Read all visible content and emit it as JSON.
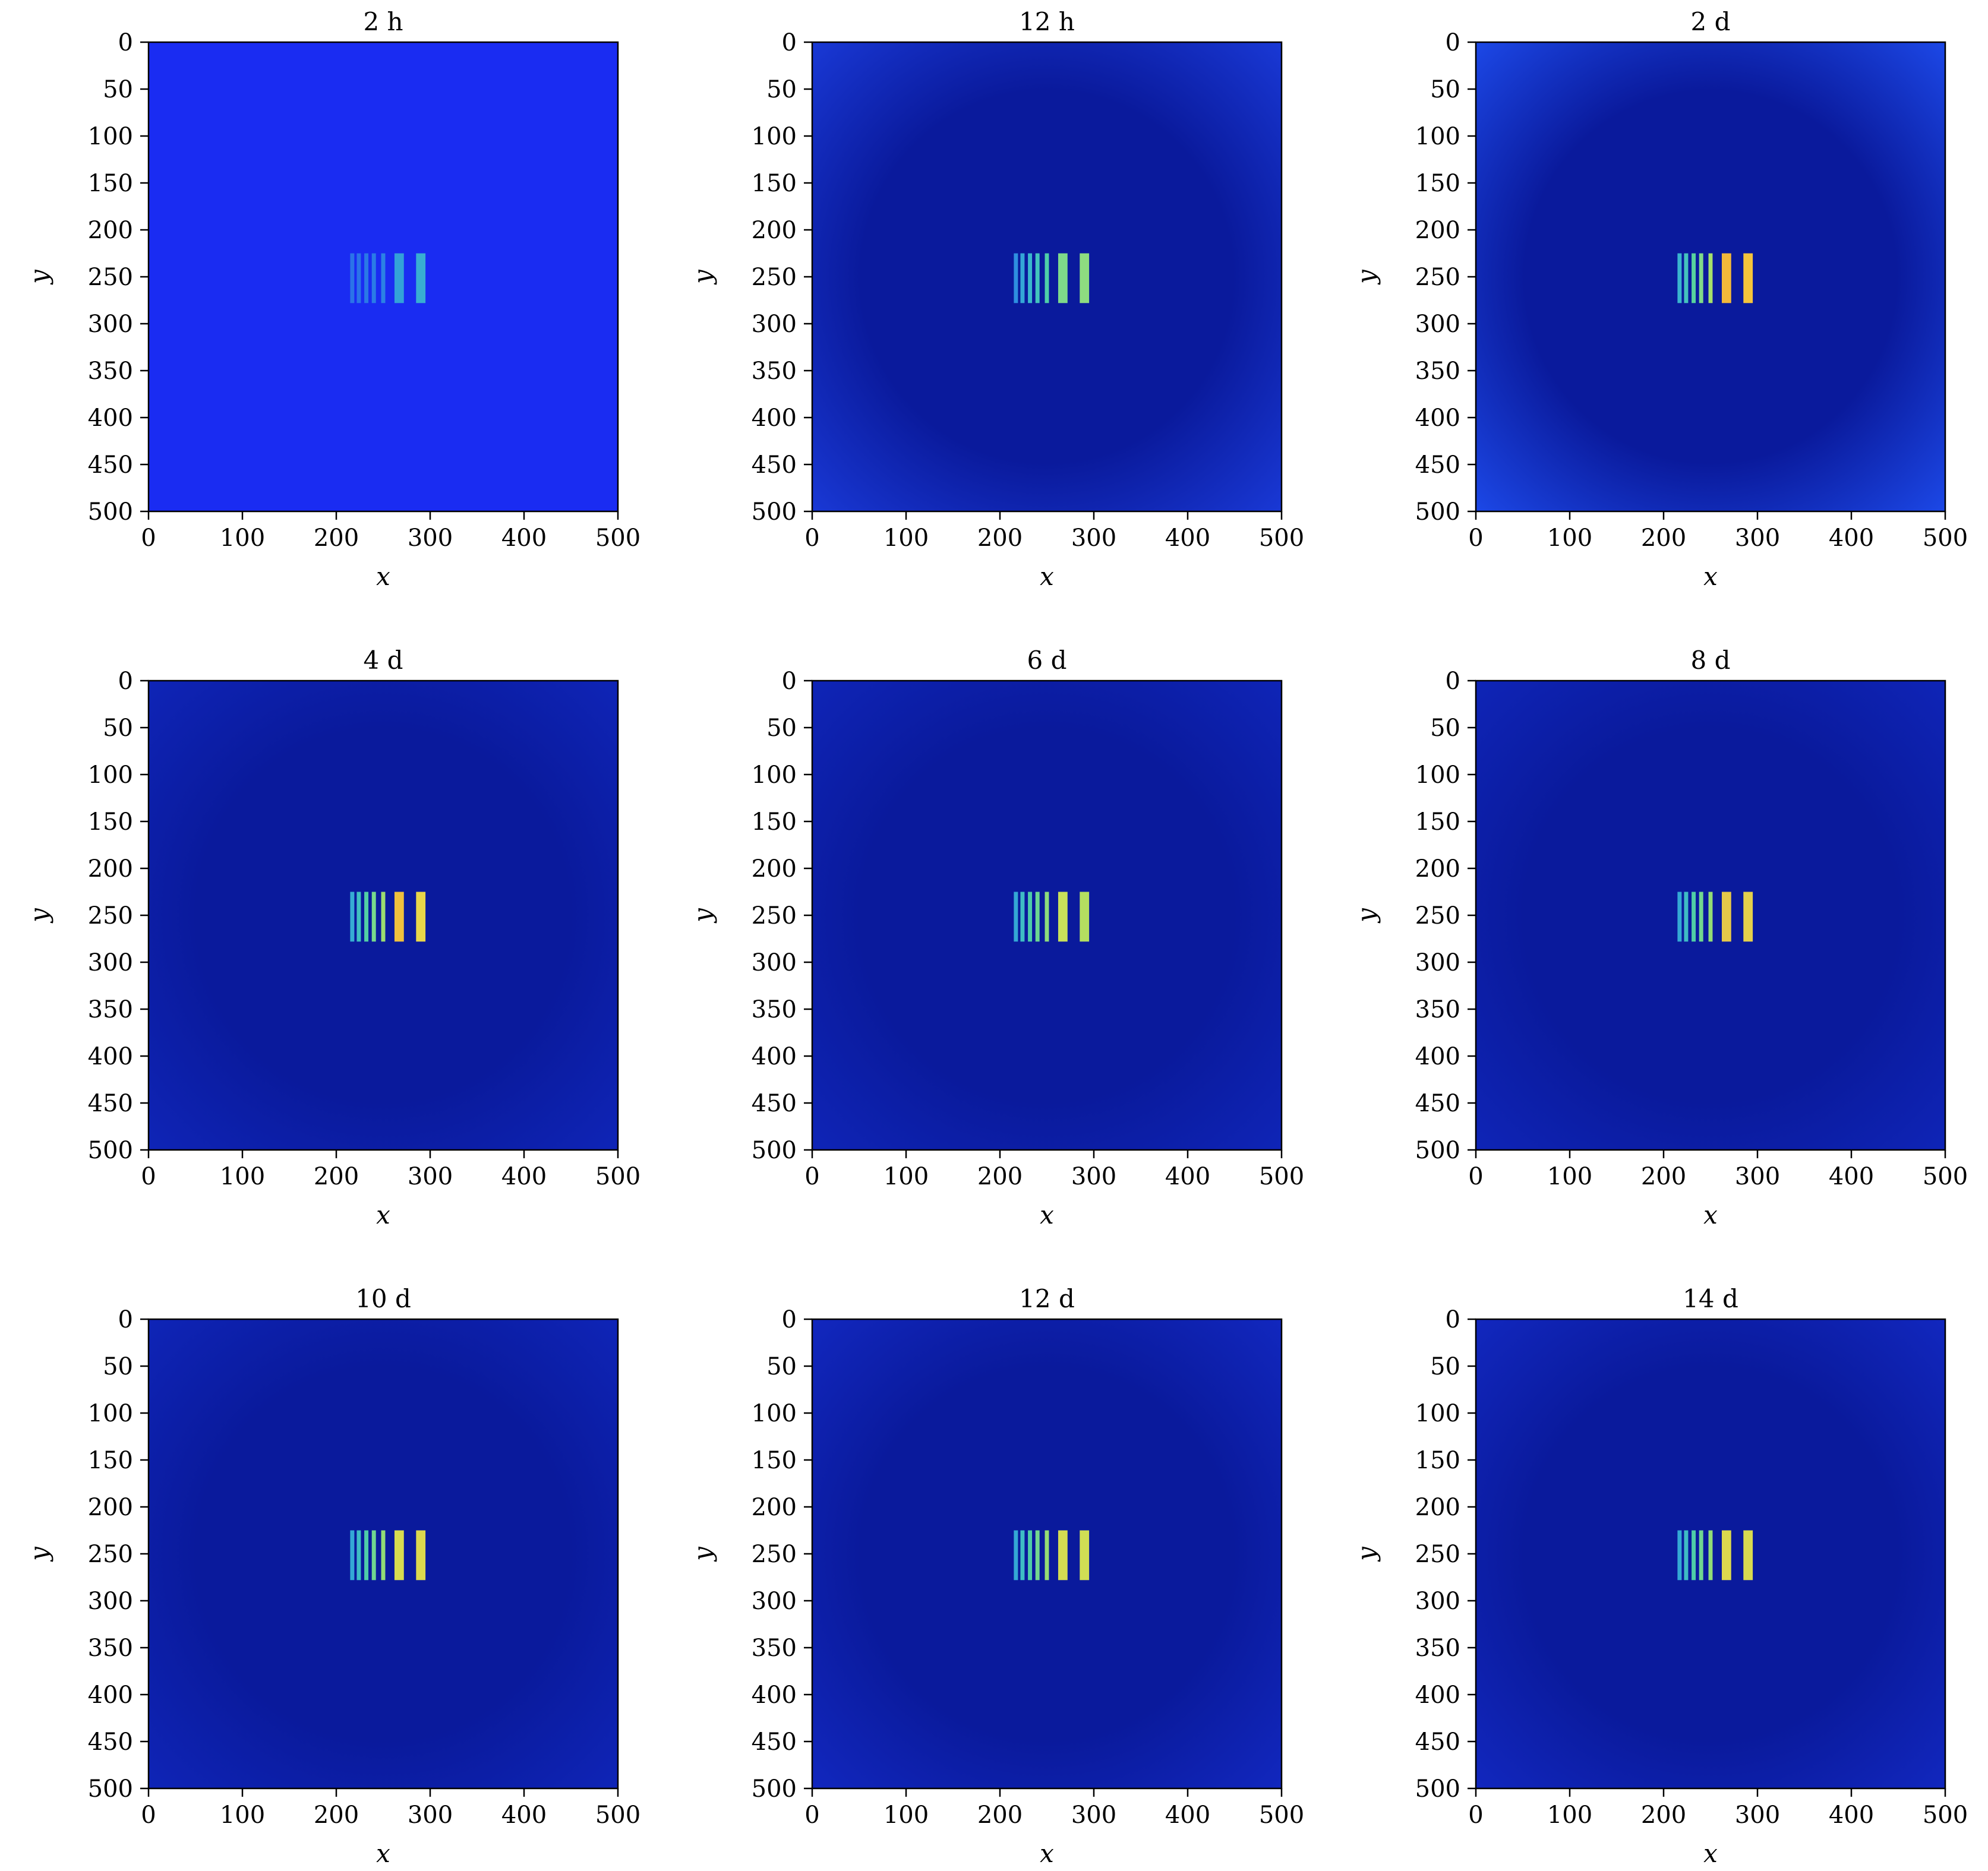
{
  "chart_data": [
    {
      "type": "heatmap",
      "title": "2 h",
      "xlabel": "x",
      "ylabel": "y",
      "xlim": [
        0,
        500
      ],
      "ylim": [
        500,
        0
      ],
      "xticks": [
        0,
        100,
        200,
        300,
        400,
        500
      ],
      "yticks": [
        0,
        50,
        100,
        150,
        200,
        250,
        300,
        350,
        400,
        450,
        500
      ],
      "background": "#1a2cf2",
      "edge_color": "#1a2cf2",
      "target_region": {
        "x": [
          213,
          295
        ],
        "y": [
          225,
          278
        ]
      },
      "bars": [
        {
          "x": 217,
          "color": "#2b74e8"
        },
        {
          "x": 224,
          "color": "#2b74e8"
        },
        {
          "x": 232,
          "color": "#2a78e6"
        },
        {
          "x": 240,
          "color": "#2a7ce6"
        },
        {
          "x": 250,
          "color": "#2b82e4"
        },
        {
          "x": 267,
          "color": "#33a2d8"
        },
        {
          "x": 290,
          "color": "#38aed2"
        }
      ]
    },
    {
      "type": "heatmap",
      "title": "12 h",
      "xlabel": "x",
      "ylabel": "y",
      "xlim": [
        0,
        500
      ],
      "ylim": [
        500,
        0
      ],
      "xticks": [
        0,
        100,
        200,
        300,
        400,
        500
      ],
      "yticks": [
        0,
        50,
        100,
        150,
        200,
        250,
        300,
        350,
        400,
        450,
        500
      ],
      "background": "#0a1a9c",
      "edge_color": "#1a3ad8",
      "target_region": {
        "x": [
          213,
          295
        ],
        "y": [
          225,
          278
        ]
      },
      "bars": [
        {
          "x": 217,
          "color": "#2e8fe0"
        },
        {
          "x": 224,
          "color": "#34a6d6"
        },
        {
          "x": 232,
          "color": "#3bb8cc"
        },
        {
          "x": 240,
          "color": "#43c4bc"
        },
        {
          "x": 250,
          "color": "#4fcfa8"
        },
        {
          "x": 267,
          "color": "#7ed98a"
        },
        {
          "x": 290,
          "color": "#8edc80"
        }
      ]
    },
    {
      "type": "heatmap",
      "title": "2 d",
      "xlabel": "x",
      "ylabel": "y",
      "xlim": [
        0,
        500
      ],
      "ylim": [
        500,
        0
      ],
      "xticks": [
        0,
        100,
        200,
        300,
        400,
        500
      ],
      "yticks": [
        0,
        50,
        100,
        150,
        200,
        250,
        300,
        350,
        400,
        450,
        500
      ],
      "background": "#0a1a9c",
      "edge_color": "#1d4aea",
      "target_region": {
        "x": [
          213,
          295
        ],
        "y": [
          225,
          278
        ]
      },
      "bars": [
        {
          "x": 217,
          "color": "#3ab4cf"
        },
        {
          "x": 224,
          "color": "#44c4bd"
        },
        {
          "x": 232,
          "color": "#58d29e"
        },
        {
          "x": 240,
          "color": "#80da88"
        },
        {
          "x": 250,
          "color": "#a6e06a"
        },
        {
          "x": 267,
          "color": "#f2b83a"
        },
        {
          "x": 290,
          "color": "#f4c43c"
        }
      ]
    },
    {
      "type": "heatmap",
      "title": "4 d",
      "xlabel": "x",
      "ylabel": "y",
      "xlim": [
        0,
        500
      ],
      "ylim": [
        500,
        0
      ],
      "xticks": [
        0,
        100,
        200,
        300,
        400,
        500
      ],
      "yticks": [
        0,
        50,
        100,
        150,
        200,
        250,
        300,
        350,
        400,
        450,
        500
      ],
      "background": "#0a1a9c",
      "edge_color": "#0f25b8",
      "target_region": {
        "x": [
          213,
          295
        ],
        "y": [
          225,
          278
        ]
      },
      "bars": [
        {
          "x": 217,
          "color": "#36acd3"
        },
        {
          "x": 224,
          "color": "#40c0c0"
        },
        {
          "x": 232,
          "color": "#52cfa4"
        },
        {
          "x": 240,
          "color": "#78d98c"
        },
        {
          "x": 250,
          "color": "#9cdd70"
        },
        {
          "x": 267,
          "color": "#efc03e"
        },
        {
          "x": 290,
          "color": "#e8d64a"
        }
      ]
    },
    {
      "type": "heatmap",
      "title": "6 d",
      "xlabel": "x",
      "ylabel": "y",
      "xlim": [
        0,
        500
      ],
      "ylim": [
        500,
        0
      ],
      "xticks": [
        0,
        100,
        200,
        300,
        400,
        500
      ],
      "yticks": [
        0,
        50,
        100,
        150,
        200,
        250,
        300,
        350,
        400,
        450,
        500
      ],
      "background": "#0a1a9c",
      "edge_color": "#0f25b8",
      "target_region": {
        "x": [
          213,
          295
        ],
        "y": [
          225,
          278
        ]
      },
      "bars": [
        {
          "x": 217,
          "color": "#34a8d5"
        },
        {
          "x": 224,
          "color": "#3ebcc4"
        },
        {
          "x": 232,
          "color": "#4ecca8"
        },
        {
          "x": 240,
          "color": "#6cd690"
        },
        {
          "x": 250,
          "color": "#8edc7c"
        },
        {
          "x": 267,
          "color": "#c8e05a"
        },
        {
          "x": 290,
          "color": "#b4de60"
        }
      ]
    },
    {
      "type": "heatmap",
      "title": "8 d",
      "xlabel": "x",
      "ylabel": "y",
      "xlim": [
        0,
        500
      ],
      "ylim": [
        500,
        0
      ],
      "xticks": [
        0,
        100,
        200,
        300,
        400,
        500
      ],
      "yticks": [
        0,
        50,
        100,
        150,
        200,
        250,
        300,
        350,
        400,
        450,
        500
      ],
      "background": "#0a1a9c",
      "edge_color": "#0f25b8",
      "target_region": {
        "x": [
          213,
          295
        ],
        "y": [
          225,
          278
        ]
      },
      "bars": [
        {
          "x": 217,
          "color": "#34a8d5"
        },
        {
          "x": 224,
          "color": "#3ebcc4"
        },
        {
          "x": 232,
          "color": "#50cda6"
        },
        {
          "x": 240,
          "color": "#72d78e"
        },
        {
          "x": 250,
          "color": "#94dc74"
        },
        {
          "x": 267,
          "color": "#e6c84a"
        },
        {
          "x": 290,
          "color": "#e4d04c"
        }
      ]
    },
    {
      "type": "heatmap",
      "title": "10 d",
      "xlabel": "x",
      "ylabel": "y",
      "xlim": [
        0,
        500
      ],
      "ylim": [
        500,
        0
      ],
      "xticks": [
        0,
        100,
        200,
        300,
        400,
        500
      ],
      "yticks": [
        0,
        50,
        100,
        150,
        200,
        250,
        300,
        350,
        400,
        450,
        500
      ],
      "background": "#0a1a9c",
      "edge_color": "#0f25b8",
      "target_region": {
        "x": [
          213,
          295
        ],
        "y": [
          225,
          278
        ]
      },
      "bars": [
        {
          "x": 217,
          "color": "#34a8d5"
        },
        {
          "x": 224,
          "color": "#3ebcc4"
        },
        {
          "x": 232,
          "color": "#4ecca8"
        },
        {
          "x": 240,
          "color": "#70d690"
        },
        {
          "x": 250,
          "color": "#92dc76"
        },
        {
          "x": 267,
          "color": "#d8dc50"
        },
        {
          "x": 290,
          "color": "#dcd84e"
        }
      ]
    },
    {
      "type": "heatmap",
      "title": "12 d",
      "xlabel": "x",
      "ylabel": "y",
      "xlim": [
        0,
        500
      ],
      "ylim": [
        500,
        0
      ],
      "xticks": [
        0,
        100,
        200,
        300,
        400,
        500
      ],
      "yticks": [
        0,
        50,
        100,
        150,
        200,
        250,
        300,
        350,
        400,
        450,
        500
      ],
      "background": "#0a1a9c",
      "edge_color": "#1228c0",
      "target_region": {
        "x": [
          213,
          295
        ],
        "y": [
          225,
          278
        ]
      },
      "bars": [
        {
          "x": 217,
          "color": "#34a8d5"
        },
        {
          "x": 224,
          "color": "#3ebcc4"
        },
        {
          "x": 232,
          "color": "#50cda6"
        },
        {
          "x": 240,
          "color": "#74d78e"
        },
        {
          "x": 250,
          "color": "#96dc74"
        },
        {
          "x": 267,
          "color": "#d4dc52"
        },
        {
          "x": 290,
          "color": "#d0de54"
        }
      ]
    },
    {
      "type": "heatmap",
      "title": "14 d",
      "xlabel": "x",
      "ylabel": "y",
      "xlim": [
        0,
        500
      ],
      "ylim": [
        500,
        0
      ],
      "xticks": [
        0,
        100,
        200,
        300,
        400,
        500
      ],
      "yticks": [
        0,
        50,
        100,
        150,
        200,
        250,
        300,
        350,
        400,
        450,
        500
      ],
      "background": "#0a1a9c",
      "edge_color": "#1228c0",
      "target_region": {
        "x": [
          213,
          295
        ],
        "y": [
          225,
          278
        ]
      },
      "bars": [
        {
          "x": 217,
          "color": "#34a8d5"
        },
        {
          "x": 224,
          "color": "#3ebcc4"
        },
        {
          "x": 232,
          "color": "#4ecca8"
        },
        {
          "x": 240,
          "color": "#70d690"
        },
        {
          "x": 250,
          "color": "#92dc76"
        },
        {
          "x": 267,
          "color": "#dcd84e"
        },
        {
          "x": 290,
          "color": "#d8da50"
        }
      ]
    }
  ]
}
